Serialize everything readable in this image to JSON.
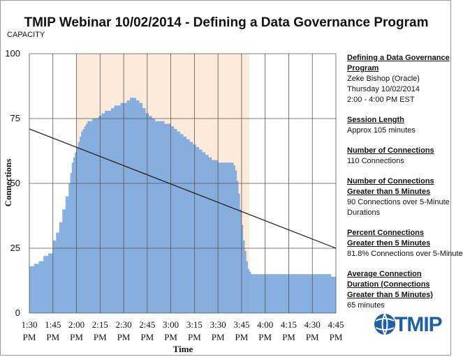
{
  "title": "TMIP Webinar 10/02/2014 - Defining a Data Governance Program",
  "capacity_label": "CAPACITY",
  "chart_data": {
    "type": "area",
    "title": "TMIP Webinar 10/02/2014 - Defining a Data Governance Program",
    "xlabel": "Time",
    "ylabel": "Connections",
    "ylim": [
      0,
      100
    ],
    "yticks": [
      0,
      25,
      50,
      75,
      100
    ],
    "xticks": [
      "1:30 PM",
      "1:45 PM",
      "2:00 PM",
      "2:15 PM",
      "2:30 PM",
      "2:45 PM",
      "3:00 PM",
      "3:15 PM",
      "3:30 PM",
      "3:45 PM",
      "4:00 PM",
      "4:15 PM",
      "4:30 PM",
      "4:45 PM"
    ],
    "x_range_minutes": [
      0,
      195
    ],
    "grid": true,
    "session_window_minutes": [
      30,
      140
    ],
    "series": [
      {
        "color": "#7aa6dc",
        "x_minutes": [
          0,
          3,
          6,
          9,
          12,
          15,
          17,
          19,
          21,
          23,
          25,
          26,
          27,
          28,
          29,
          30,
          31,
          32,
          33,
          34,
          35,
          36,
          37,
          38,
          40,
          42,
          44,
          46,
          48,
          50,
          52,
          54,
          56,
          58,
          60,
          62,
          64,
          66,
          68,
          70,
          72,
          74,
          76,
          78,
          80,
          82,
          84,
          86,
          88,
          90,
          92,
          94,
          96,
          98,
          100,
          102,
          104,
          106,
          108,
          110,
          112,
          114,
          116,
          118,
          120,
          122,
          124,
          126,
          128,
          130,
          131,
          132,
          133,
          134,
          135,
          136,
          137,
          138,
          139,
          140,
          141,
          142,
          143,
          144,
          146,
          150,
          155,
          160,
          165,
          170,
          175,
          180,
          185,
          190,
          192,
          195
        ],
        "values": [
          18,
          19,
          20,
          22,
          23,
          28,
          31,
          35,
          40,
          45,
          50,
          54,
          58,
          60,
          62,
          64,
          66,
          68,
          70,
          71,
          72,
          73,
          74,
          74,
          75,
          75,
          76,
          77,
          78,
          78,
          79,
          80,
          80,
          81,
          81,
          82,
          83,
          83,
          82,
          81,
          79,
          77,
          76,
          75,
          74,
          74,
          74,
          73,
          73,
          72,
          71,
          70,
          69,
          68,
          67,
          66,
          65,
          64,
          63,
          62,
          61,
          60,
          59,
          59,
          58,
          58,
          58,
          58,
          58,
          57,
          55,
          51,
          46,
          40,
          34,
          28,
          24,
          20,
          17,
          16,
          15,
          15,
          15,
          15,
          15,
          15,
          15,
          15,
          15,
          15,
          15,
          15,
          15,
          15,
          14,
          14
        ]
      },
      {
        "type": "line",
        "color": "#111111",
        "x_minutes": [
          0,
          195
        ],
        "values": [
          71,
          25
        ]
      }
    ]
  },
  "side": [
    {
      "heading": "Defining a Data Governance Program",
      "lines": [
        "Zeke Bishop (Oracle)",
        "Thursday 10/02/2014",
        "2:00 - 4:00 PM EST"
      ]
    },
    {
      "heading": "Session Length",
      "lines": [
        "Approx  105 minutes"
      ]
    },
    {
      "heading": "Number of Connections",
      "lines": [
        "110 Connections"
      ]
    },
    {
      "heading": "Number of Connections Greater than 5 Minutes",
      "lines": [
        "90 Connections over 5-Minute",
        " Durations"
      ]
    },
    {
      "heading": "Percent Connections  Greater then 5 Minutes",
      "lines": [
        "81.8% Connections over 5-Minute"
      ]
    },
    {
      "heading": "Average Connection  Duration (Connections  Greater than 5 Minutes)",
      "lines": [
        " 65 minutes"
      ]
    }
  ],
  "logo": {
    "text": "TMIP",
    "icon": "globe-icon",
    "color": "#1f5fa8"
  }
}
